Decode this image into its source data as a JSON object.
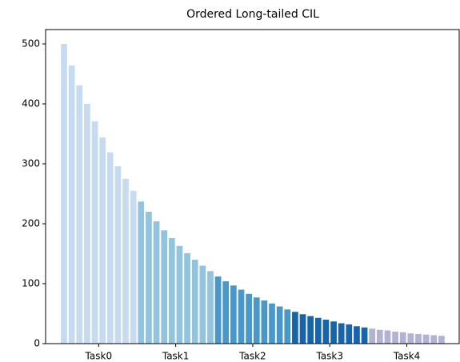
{
  "chart_data": {
    "type": "bar",
    "title": "Ordered Long-tailed CIL",
    "groups": [
      {
        "name": "Task0",
        "color": "#c6dbef",
        "values": [
          500,
          464,
          431,
          400,
          371,
          344,
          319,
          296,
          275,
          255
        ]
      },
      {
        "name": "Task1",
        "color": "#93c4de",
        "values": [
          237,
          220,
          204,
          189,
          176,
          163,
          151,
          140,
          130,
          121
        ]
      },
      {
        "name": "Task2",
        "color": "#4a98c9",
        "values": [
          112,
          104,
          97,
          90,
          83,
          77,
          72,
          67,
          62,
          57
        ]
      },
      {
        "name": "Task3",
        "color": "#1764ab",
        "values": [
          53,
          49,
          46,
          43,
          40,
          37,
          34,
          32,
          29,
          27
        ]
      },
      {
        "name": "Task4",
        "color": "#b2b2d4",
        "values": [
          25,
          23,
          22,
          20,
          19,
          17,
          16,
          15,
          14,
          13
        ]
      }
    ],
    "ylim": [
      0,
      524
    ],
    "yticks": [
      0,
      100,
      200,
      300,
      400,
      500
    ],
    "grid": false
  }
}
